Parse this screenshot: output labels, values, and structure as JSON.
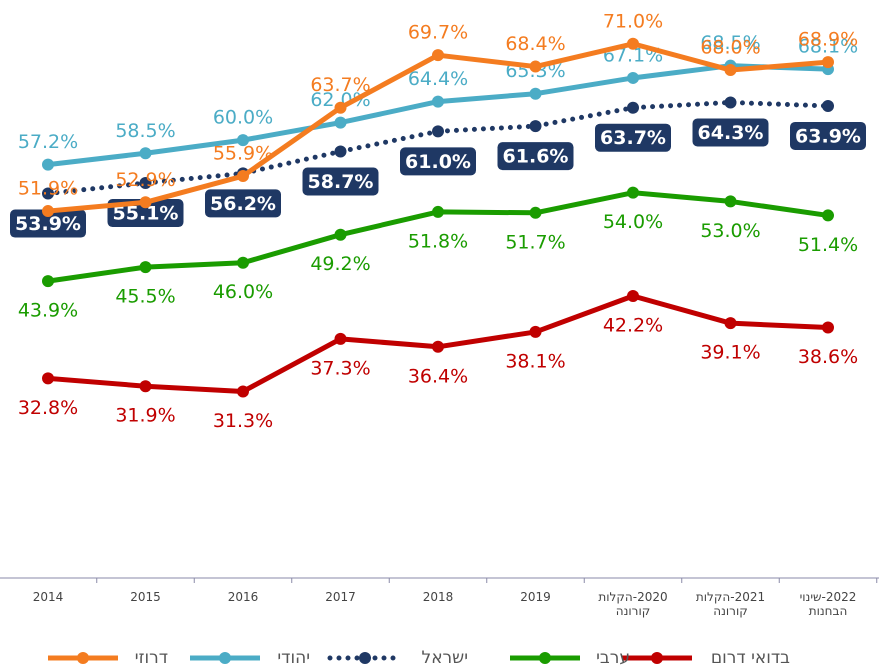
{
  "chart_data": {
    "type": "line",
    "categories": [
      "2014",
      "2015",
      "2016",
      "2017",
      "2018",
      "2019",
      "2020-הקלות קורונה",
      "2021-הקלות קורונה",
      "2022-שינוי הבחנות"
    ],
    "ylim": [
      10,
      76
    ],
    "series": [
      {
        "name": "בדואי דרום",
        "color": "#c00000",
        "values": [
          32.8,
          31.9,
          31.3,
          37.3,
          36.4,
          38.1,
          42.2,
          39.1,
          38.6
        ],
        "value_labels": [
          "32.8%",
          "31.9%",
          "31.3%",
          "37.3%",
          "36.4%",
          "38.1%",
          "42.2%",
          "39.1%",
          "38.6%"
        ]
      },
      {
        "name": "ערבי",
        "color": "#1a9c00",
        "values": [
          43.9,
          45.5,
          46.0,
          49.2,
          51.8,
          51.7,
          54.0,
          53.0,
          51.4
        ],
        "value_labels": [
          "43.9%",
          "45.5%",
          "46.0%",
          "49.2%",
          "51.8%",
          "51.7%",
          "54.0%",
          "53.0%",
          "51.4%"
        ]
      },
      {
        "name": "ישראל",
        "color": "#1f3864",
        "dotted": true,
        "values": [
          53.9,
          55.1,
          56.2,
          58.7,
          61.0,
          61.6,
          63.7,
          64.3,
          63.9
        ],
        "value_labels": [
          "53.9%",
          "55.1%",
          "56.2%",
          "58.7%",
          "61.0%",
          "61.6%",
          "63.7%",
          "64.3%",
          "63.9%"
        ]
      },
      {
        "name": "יהודי",
        "color": "#4bacc6",
        "values": [
          57.2,
          58.5,
          60.0,
          62.0,
          64.4,
          65.3,
          67.1,
          68.5,
          68.1
        ],
        "value_labels": [
          "57.2%",
          "58.5%",
          "60.0%",
          "62.0%",
          "64.4%",
          "65.3%",
          "67.1%",
          "68.5%",
          "68.1%"
        ]
      },
      {
        "name": "דרוזי",
        "color": "#f47c20",
        "values": [
          51.9,
          52.9,
          55.9,
          63.7,
          69.7,
          68.4,
          71.0,
          68.0,
          68.9
        ],
        "value_labels": [
          "51.9%",
          "52.9%",
          "55.9%",
          "63.7%",
          "69.7%",
          "68.4%",
          "71.0%",
          "68.0%",
          "68.9%"
        ]
      }
    ]
  }
}
